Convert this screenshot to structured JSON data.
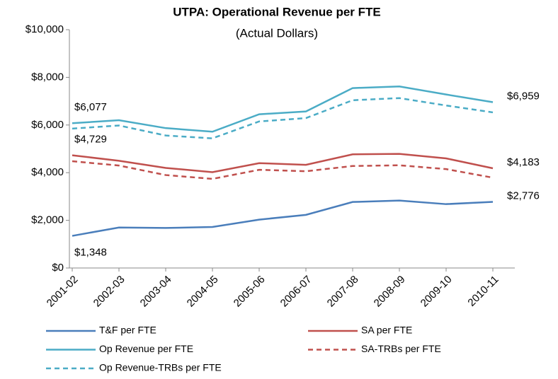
{
  "chart_data": {
    "type": "line",
    "title": "UTPA: Operational Revenue per FTE",
    "subtitle": "(Actual Dollars)",
    "categories": [
      "2001-02",
      "2002-03",
      "2003-04",
      "2004-05",
      "2005-06",
      "2006-07",
      "2007-08",
      "2008-09",
      "2009-10",
      "2010-11"
    ],
    "series": [
      {
        "name": "T&F per FTE",
        "color": "#4a7ebb",
        "dashed": false,
        "values": [
          1348,
          1700,
          1680,
          1720,
          2030,
          2230,
          2770,
          2830,
          2680,
          2776
        ],
        "value_labels": [
          "$1,348",
          null,
          null,
          null,
          null,
          null,
          null,
          null,
          null,
          "$2,776"
        ]
      },
      {
        "name": "SA per FTE",
        "color": "#c0504d",
        "dashed": false,
        "values": [
          4729,
          4500,
          4200,
          4020,
          4400,
          4330,
          4770,
          4790,
          4600,
          4183
        ],
        "value_labels": [
          "$4,729",
          null,
          null,
          null,
          null,
          null,
          null,
          null,
          null,
          "$4,183"
        ]
      },
      {
        "name": "Op Revenue per FTE",
        "color": "#4bacc6",
        "dashed": false,
        "values": [
          6077,
          6200,
          5870,
          5720,
          6450,
          6570,
          7550,
          7620,
          7280,
          6959
        ],
        "value_labels": [
          "$6,077",
          null,
          null,
          null,
          null,
          null,
          null,
          null,
          null,
          "$6,959"
        ]
      },
      {
        "name": "SA-TRBs per FTE",
        "color": "#c0504d",
        "dashed": true,
        "values": [
          4480,
          4300,
          3900,
          3740,
          4120,
          4060,
          4280,
          4310,
          4150,
          3790
        ]
      },
      {
        "name": "Op Revenue-TRBs per FTE",
        "color": "#4bacc6",
        "dashed": true,
        "values": [
          5850,
          5980,
          5560,
          5440,
          6150,
          6290,
          7040,
          7130,
          6820,
          6530
        ]
      }
    ],
    "ylim": [
      0,
      10000
    ],
    "yticks": [
      {
        "value": 0,
        "label": "$0"
      },
      {
        "value": 2000,
        "label": "$2,000"
      },
      {
        "value": 4000,
        "label": "$4,000"
      },
      {
        "value": 6000,
        "label": "$6,000"
      },
      {
        "value": 8000,
        "label": "$8,000"
      },
      {
        "value": 10000,
        "label": "$10,000"
      }
    ],
    "grid": false,
    "legend": "bottom"
  }
}
